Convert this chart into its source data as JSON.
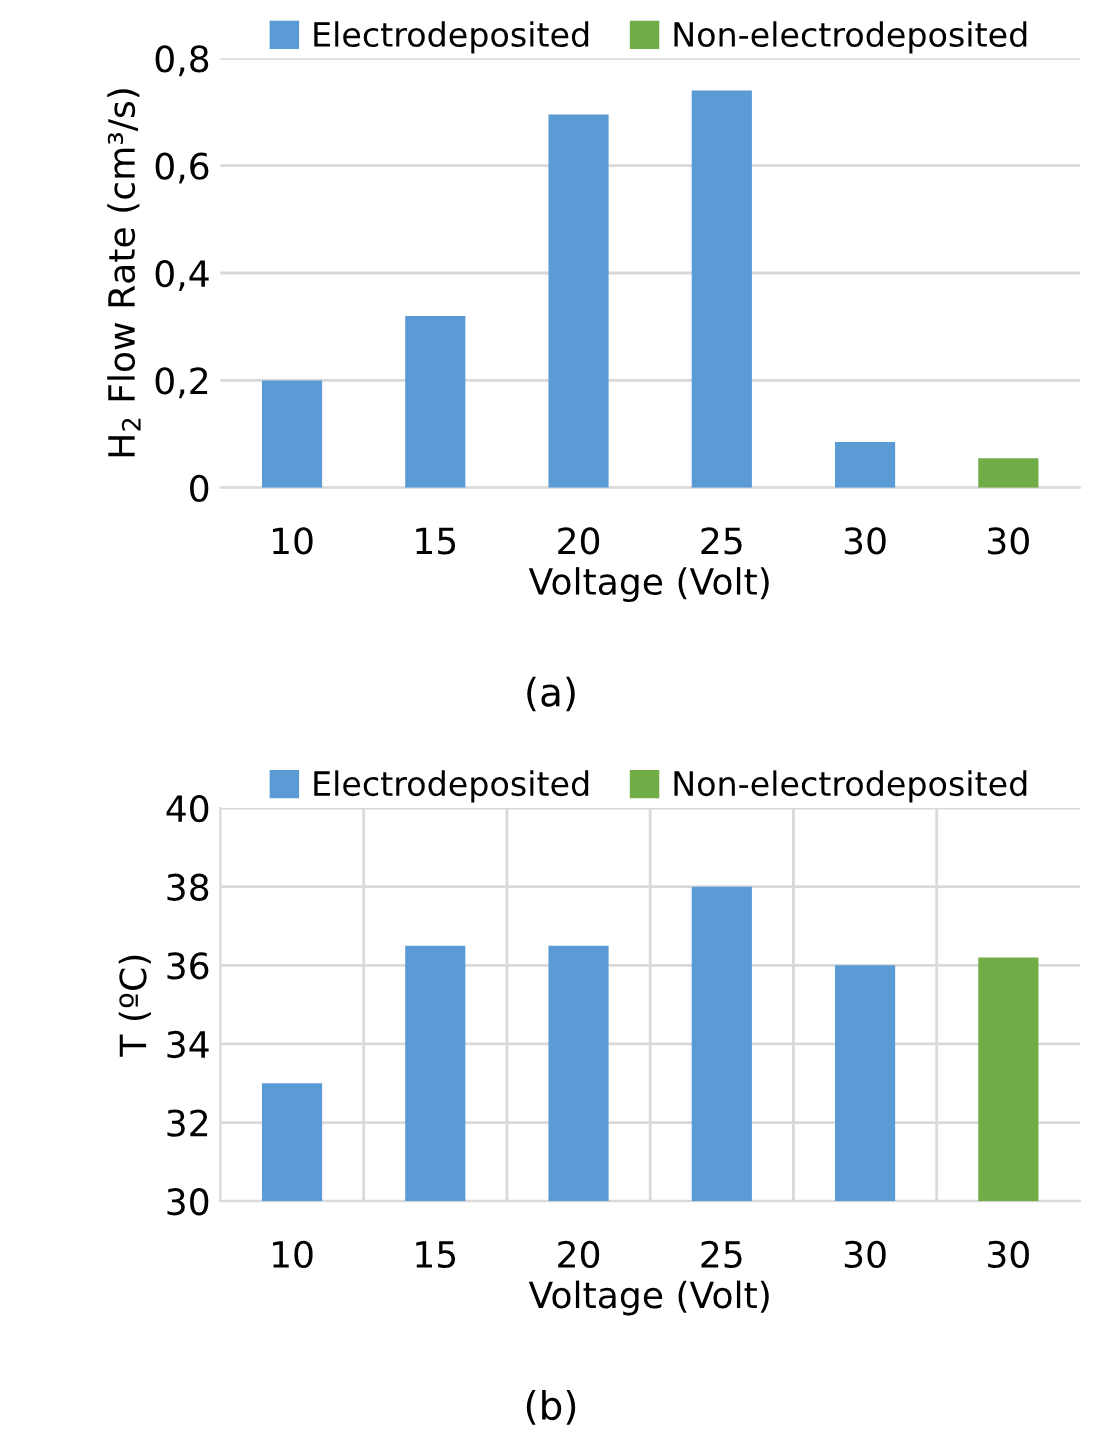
{
  "chart_data": [
    {
      "type": "bar",
      "stacked": true,
      "categories": [
        "10",
        "15",
        "20",
        "25",
        "30",
        "30"
      ],
      "series": [
        {
          "name": "Electrodeposited",
          "color": "#5b9bd5",
          "values": [
            0.2,
            0.32,
            0.695,
            0.74,
            0.085,
            null
          ]
        },
        {
          "name": "Non-electrodeposited",
          "color": "#70ad47",
          "values": [
            null,
            null,
            null,
            null,
            null,
            0.055
          ]
        }
      ],
      "xlabel": "Voltage (Volt)",
      "ylabel": "H$_{2}$ Flow Rate (cm³/s)",
      "ylim": [
        0,
        0.8
      ],
      "yticks": [
        0,
        {
          "value": 0.2,
          "label": "0,2"
        },
        {
          "value": 0.4,
          "label": "0,4"
        },
        {
          "value": 0.6,
          "label": "0,6"
        },
        {
          "value": 0.8,
          "label": "0,8"
        }
      ],
      "grid": "y",
      "legend": "top",
      "annotations": [
        "(a)"
      ]
    },
    {
      "type": "bar",
      "stacked": true,
      "categories": [
        "10",
        "15",
        "20",
        "25",
        "30",
        "30"
      ],
      "series": [
        {
          "name": "Electrodeposited",
          "color": "#5b9bd5",
          "values": [
            33,
            36.5,
            36.5,
            38,
            36,
            null
          ]
        },
        {
          "name": "Non-electrodeposited",
          "color": "#70ad47",
          "values": [
            null,
            null,
            null,
            null,
            null,
            36.2
          ]
        }
      ],
      "xlabel": "Voltage (Volt)",
      "ylabel": "T (ºC)",
      "ylim": [
        30,
        40
      ],
      "yticks": [
        30,
        32,
        34,
        36,
        38,
        40
      ],
      "grid": true,
      "legend": "top",
      "annotations": [
        "(b)"
      ]
    }
  ]
}
